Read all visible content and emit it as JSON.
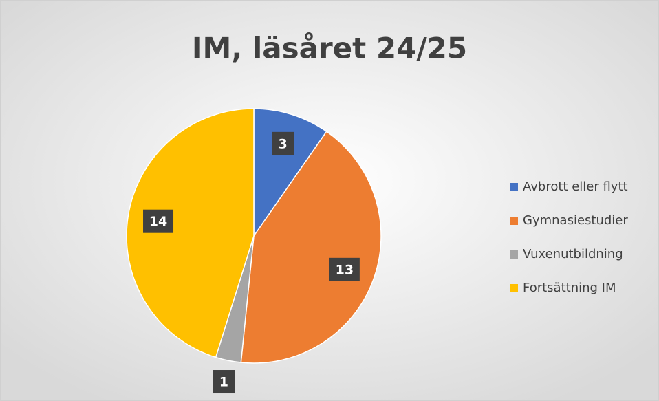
{
  "chart_data": {
    "type": "pie",
    "title": "IM, läsåret 24/25",
    "categories": [
      "Avbrott eller flytt",
      "Gymnasiestudier",
      "Vuxenutbildning",
      "Fortsättning IM"
    ],
    "values": [
      3,
      13,
      1,
      14
    ],
    "colors": [
      "#4472c4",
      "#ed7d31",
      "#a5a5a5",
      "#ffc000"
    ],
    "legend": "right"
  }
}
